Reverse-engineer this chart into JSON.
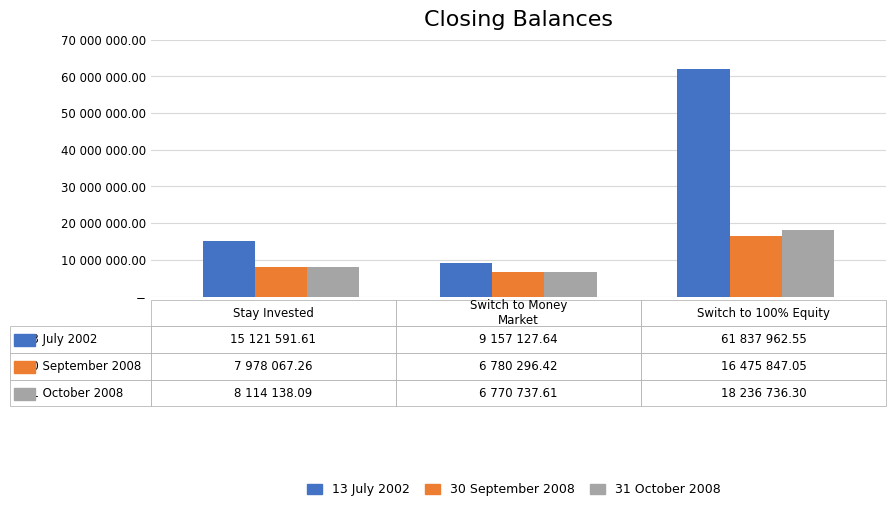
{
  "title": "Closing Balances",
  "categories": [
    "Stay Invested",
    "Switch to Money\nMarket",
    "Switch to 100% Equity"
  ],
  "series": [
    {
      "label": "13 July 2002",
      "color": "#4472C4",
      "values": [
        15121591.61,
        9157127.64,
        61837962.55
      ]
    },
    {
      "label": "30 September 2008",
      "color": "#ED7D31",
      "values": [
        7978067.26,
        6780296.42,
        16475847.05
      ]
    },
    {
      "label": "31 October 2008",
      "color": "#A5A5A5",
      "values": [
        8114138.09,
        6770737.61,
        18236736.3
      ]
    }
  ],
  "table_rows": [
    [
      "13 July 2002",
      "15 121 591.61",
      "9 157 127.64",
      "61 837 962.55"
    ],
    [
      "30 September 2008",
      "7 978 067.26",
      "6 780 296.42",
      "16 475 847.05"
    ],
    [
      "31 October 2008",
      "8 114 138.09",
      "6 770 737.61",
      "18 236 736.30"
    ]
  ],
  "ylim": [
    0,
    70000000
  ],
  "yticks": [
    0,
    10000000,
    20000000,
    30000000,
    40000000,
    50000000,
    60000000,
    70000000
  ],
  "bar_width": 0.22,
  "background_color": "#FFFFFF",
  "title_fontsize": 16,
  "tick_fontsize": 8.5,
  "legend_fontsize": 9,
  "table_fontsize": 8.5
}
